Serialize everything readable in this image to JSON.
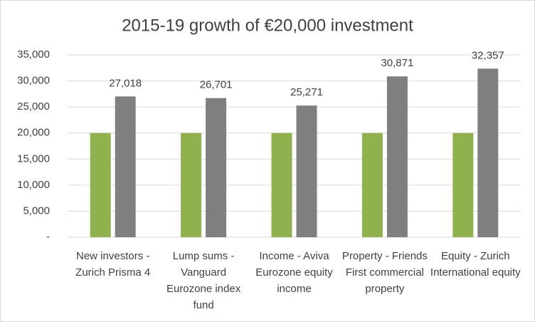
{
  "chart_data": {
    "type": "bar",
    "title": "2015-19 growth of €20,000 investment",
    "categories": [
      "New investors - Zurich Prisma 4",
      "Lump sums - Vanguard Eurozone index fund",
      "Income - Aviva Eurozone equity income",
      "Property - Friends First commercial property",
      "Equity - Zurich International equity"
    ],
    "series": [
      {
        "color": "#8fb14e",
        "values": [
          20000,
          20000,
          20000,
          20000,
          20000
        ]
      },
      {
        "color": "#7f7f7f",
        "values": [
          27018,
          26701,
          25271,
          30871,
          32357
        ],
        "value_labels": [
          "27,018",
          "26,701",
          "25,271",
          "30,871",
          "32,357"
        ]
      }
    ],
    "ylim": [
      0,
      35000
    ],
    "yticks": [
      {
        "value": 0,
        "label": "-"
      },
      {
        "value": 5000,
        "label": "5,000"
      },
      {
        "value": 10000,
        "label": "10,000"
      },
      {
        "value": 15000,
        "label": "15,000"
      },
      {
        "value": 20000,
        "label": "20,000"
      },
      {
        "value": 25000,
        "label": "25,000"
      },
      {
        "value": 30000,
        "label": "30,000"
      },
      {
        "value": 35000,
        "label": "35,000"
      }
    ],
    "grid": true
  }
}
